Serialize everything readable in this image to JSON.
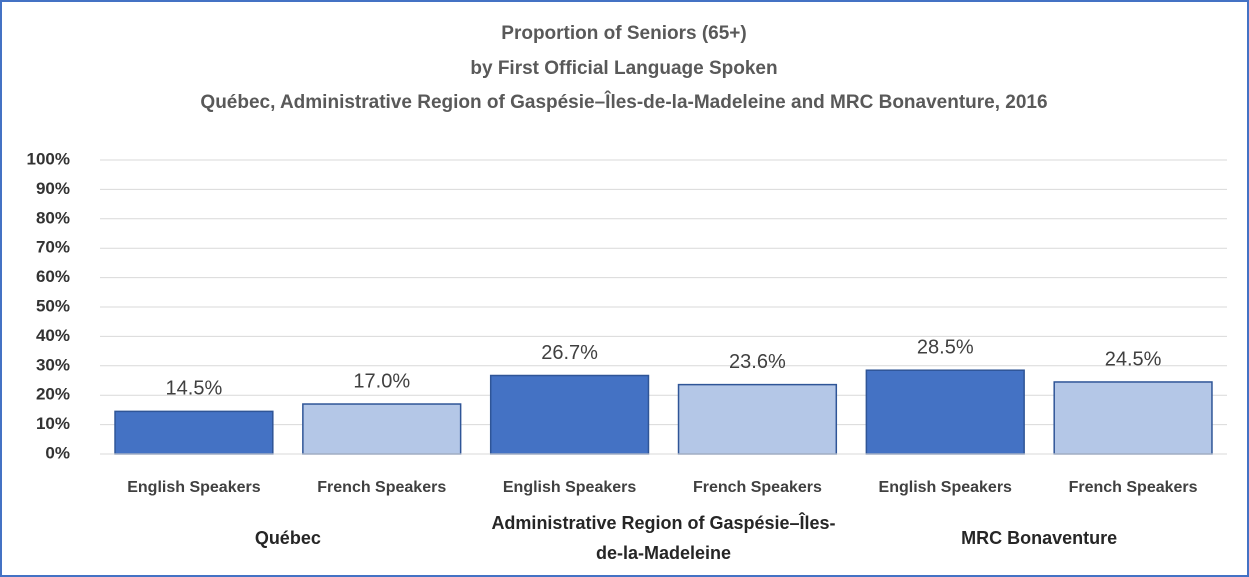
{
  "chart_data": {
    "type": "bar",
    "title": "Proportion of Seniors (65+)",
    "subtitle": [
      "by First Official Language Spoken",
      "Québec, Administrative Region of Gaspésie–Îles-de-la-Madeleine and MRC Bonaventure, 2016"
    ],
    "categories": [
      "English Speakers",
      "French Speakers",
      "English Speakers",
      "French Speakers",
      "English Speakers",
      "French Speakers"
    ],
    "groups": [
      "Québec",
      "Administrative Region of Gaspésie–Îles-de-la-Madeleine",
      "MRC Bonaventure"
    ],
    "values": [
      14.5,
      17.0,
      26.7,
      23.6,
      28.5,
      24.5
    ],
    "value_labels": [
      "14.5%",
      "17.0%",
      "26.7%",
      "23.6%",
      "28.5%",
      "24.5%"
    ],
    "colors": [
      "#4472c4",
      "#b4c7e7",
      "#4472c4",
      "#b4c7e7",
      "#4472c4",
      "#b4c7e7"
    ],
    "ylim": [
      0,
      100
    ],
    "yticks": [
      {
        "value": 0,
        "label": "0%"
      },
      {
        "value": 10,
        "label": "10%"
      },
      {
        "value": 20,
        "label": "20%"
      },
      {
        "value": 30,
        "label": "30%"
      },
      {
        "value": 40,
        "label": "40%"
      },
      {
        "value": 50,
        "label": "50%"
      },
      {
        "value": 60,
        "label": "60%"
      },
      {
        "value": 70,
        "label": "70%"
      },
      {
        "value": 80,
        "label": "80%"
      },
      {
        "value": 90,
        "label": "90%"
      },
      {
        "value": 100,
        "label": "100%"
      }
    ],
    "grid": true
  }
}
